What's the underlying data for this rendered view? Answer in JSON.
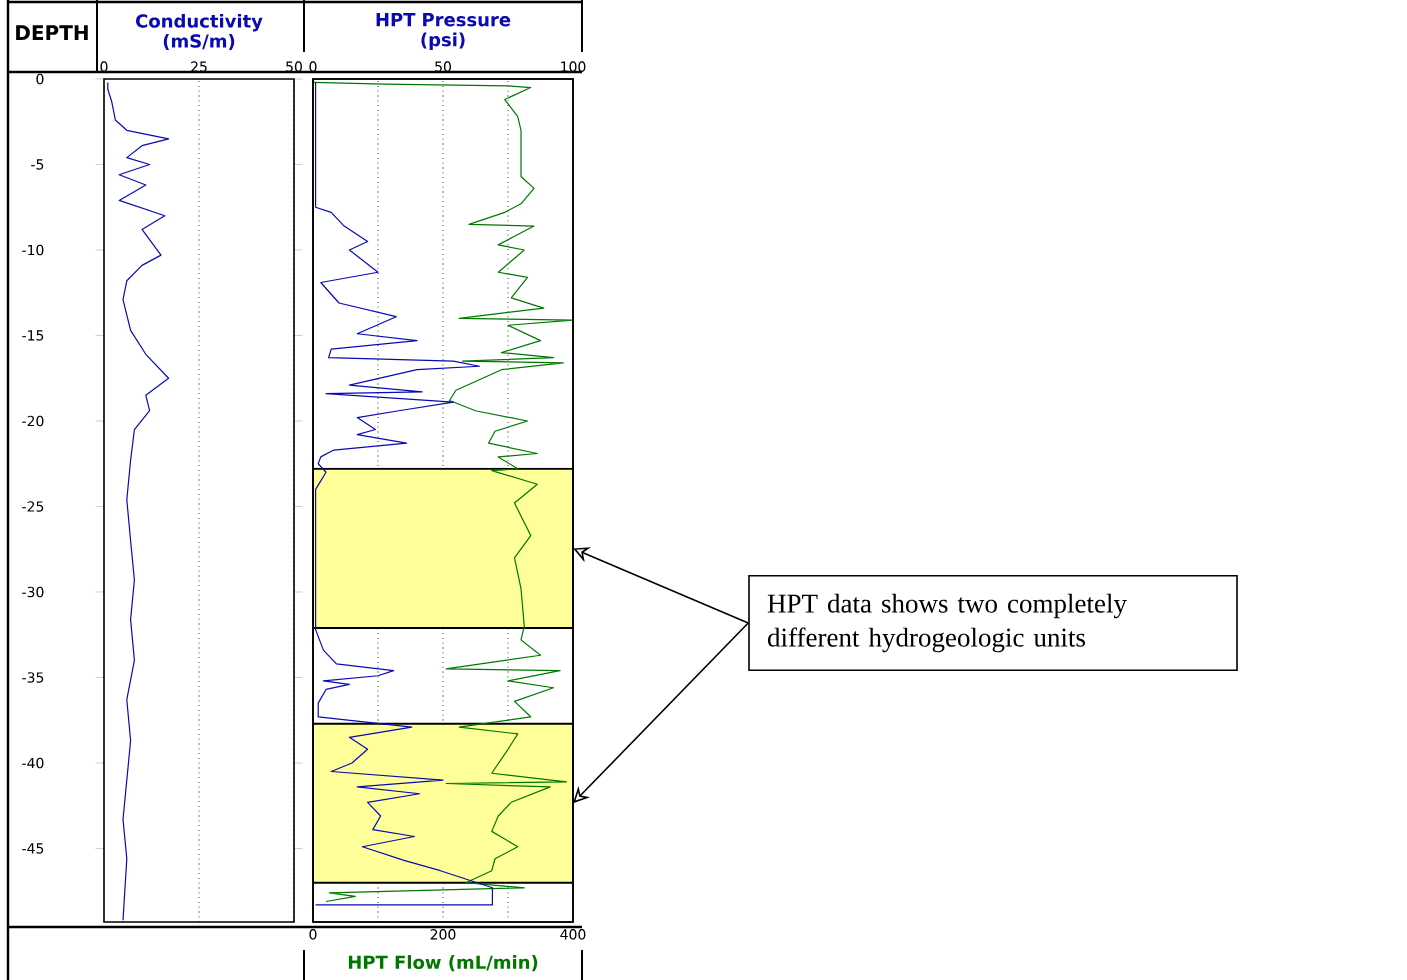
{
  "chart_data": [
    {
      "type": "line",
      "xlabel": "Conductivity (mS/m)",
      "ylabel": "DEPTH",
      "xlim": [
        0,
        50
      ],
      "xticks": [
        0,
        25,
        50
      ],
      "ylim": [
        -49.3,
        0
      ],
      "yticks": [
        0,
        -5,
        -10,
        -15,
        -20,
        -25,
        -30,
        -35,
        -40,
        -45
      ],
      "grid": "x",
      "series": [
        {
          "color": "#0a0ab4",
          "x": [
            1,
            1,
            2,
            3,
            6,
            17,
            10,
            6,
            12,
            4,
            11,
            4,
            16,
            10,
            15,
            10,
            6,
            5,
            7,
            11,
            17,
            11,
            12,
            8,
            7,
            6,
            7,
            8,
            7,
            8,
            6,
            7,
            6,
            5,
            6,
            5
          ],
          "values": [
            -0.2,
            -0.6,
            -1.3,
            -2.4,
            -3.0,
            -3.5,
            -3.9,
            -4.6,
            -5.0,
            -5.6,
            -6.2,
            -7.1,
            -8.0,
            -8.8,
            -10.3,
            -10.9,
            -11.8,
            -12.9,
            -14.7,
            -16.1,
            -17.5,
            -18.5,
            -19.4,
            -20.5,
            -22.3,
            -24.6,
            -27.0,
            -29.3,
            -31.6,
            -34.0,
            -36.3,
            -38.7,
            -41.0,
            -43.3,
            -45.6,
            -49.2
          ]
        }
      ]
    },
    {
      "type": "line",
      "xlabel": "HPT Flow (mL/min)",
      "x2label": "HPT Pressure (psi)",
      "xlim": [
        0,
        400
      ],
      "xticks": [
        0,
        {
          "value": 100,
          "label": null
        },
        200,
        {
          "value": 300,
          "label": null
        },
        400
      ],
      "x2lim": [
        0,
        100
      ],
      "x2ticks": [
        0,
        50,
        100
      ],
      "ylim": [
        -49.3,
        0
      ],
      "grid": "x",
      "tick_labels": "x",
      "bands": [
        {
          "axis": "y",
          "from": -22.8,
          "to": -32.1,
          "color": "#ffff99"
        },
        {
          "axis": "y",
          "from": -37.7,
          "to": -47.0,
          "color": "#ffff99"
        }
      ],
      "annotations": [
        "HPT data shows two completely different hydrogeologic units"
      ],
      "series": [
        {
          "color": "#007800",
          "x": [
            0,
            110,
            300,
            335,
            295,
            315,
            320,
            320,
            340,
            320,
            295,
            240,
            340,
            310,
            285,
            325,
            285,
            330,
            305,
            355,
            225,
            400,
            300,
            350,
            290,
            370,
            230,
            385,
            290,
            220,
            210,
            250,
            330,
            280,
            270,
            345,
            285,
            315,
            275,
            345,
            310,
            335,
            310,
            320,
            325,
            320,
            350,
            205,
            380,
            300,
            370,
            310,
            335,
            225,
            315,
            300,
            275,
            390,
            205,
            365,
            305,
            285,
            275,
            315,
            280,
            275,
            235,
            325,
            25,
            65,
            20
          ],
          "values": [
            -0.2,
            -0.3,
            -0.4,
            -0.5,
            -1.2,
            -2.2,
            -3,
            -5.7,
            -6.4,
            -7.3,
            -7.8,
            -8.5,
            -8.6,
            -9.2,
            -9.7,
            -10,
            -11.3,
            -11.6,
            -12.8,
            -13.4,
            -14,
            -14.1,
            -14.4,
            -15.3,
            -16,
            -16.3,
            -16.5,
            -16.6,
            -17,
            -18.2,
            -18.8,
            -19.4,
            -20,
            -20.6,
            -21.3,
            -21.9,
            -22.1,
            -22.8,
            -22.9,
            -23.7,
            -24.8,
            -26.7,
            -28,
            -29.8,
            -32,
            -32.8,
            -33.7,
            -34.5,
            -34.6,
            -35.2,
            -35.6,
            -36.4,
            -37.3,
            -37.9,
            -38.3,
            -39.2,
            -40.6,
            -41.1,
            -41.2,
            -41.4,
            -42.3,
            -43.1,
            -44,
            -44.9,
            -45.6,
            -46.3,
            -47,
            -47.3,
            -47.6,
            -47.8,
            -48.1
          ]
        },
        {
          "color": "#0a0ab4",
          "axis": "x2",
          "x": [
            1,
            1,
            7,
            12,
            21,
            14,
            25,
            3,
            10,
            32,
            17,
            40,
            7,
            6,
            54,
            64,
            40,
            14,
            42,
            5,
            54,
            33,
            17,
            24,
            17,
            36,
            8,
            3,
            2,
            5,
            3,
            1,
            1,
            4,
            9,
            31,
            25,
            4,
            14,
            5,
            2,
            2,
            38,
            14,
            21,
            15,
            7,
            50,
            17,
            41,
            21,
            26,
            23,
            39,
            19,
            35,
            49,
            59,
            69,
            69,
            1
          ],
          "values": [
            -0.2,
            -7.5,
            -7.8,
            -8.6,
            -9.5,
            -10,
            -11.3,
            -11.9,
            -13.1,
            -13.9,
            -14.9,
            -15.3,
            -15.8,
            -16.3,
            -16.5,
            -16.8,
            -17,
            -17.9,
            -18.3,
            -18.4,
            -18.9,
            -19.4,
            -19.8,
            -20.5,
            -20.8,
            -21.3,
            -21.7,
            -22.1,
            -22.5,
            -23,
            -23.5,
            -24,
            -32.2,
            -33.4,
            -34.2,
            -34.6,
            -34.9,
            -35.2,
            -35.4,
            -35.7,
            -36.5,
            -37.3,
            -37.9,
            -38.5,
            -39.2,
            -40,
            -40.5,
            -41,
            -41.4,
            -41.8,
            -42.3,
            -43.1,
            -43.9,
            -44.3,
            -44.9,
            -45.7,
            -46.3,
            -46.8,
            -47.3,
            -48.3,
            -48.3
          ]
        }
      ]
    }
  ]
}
